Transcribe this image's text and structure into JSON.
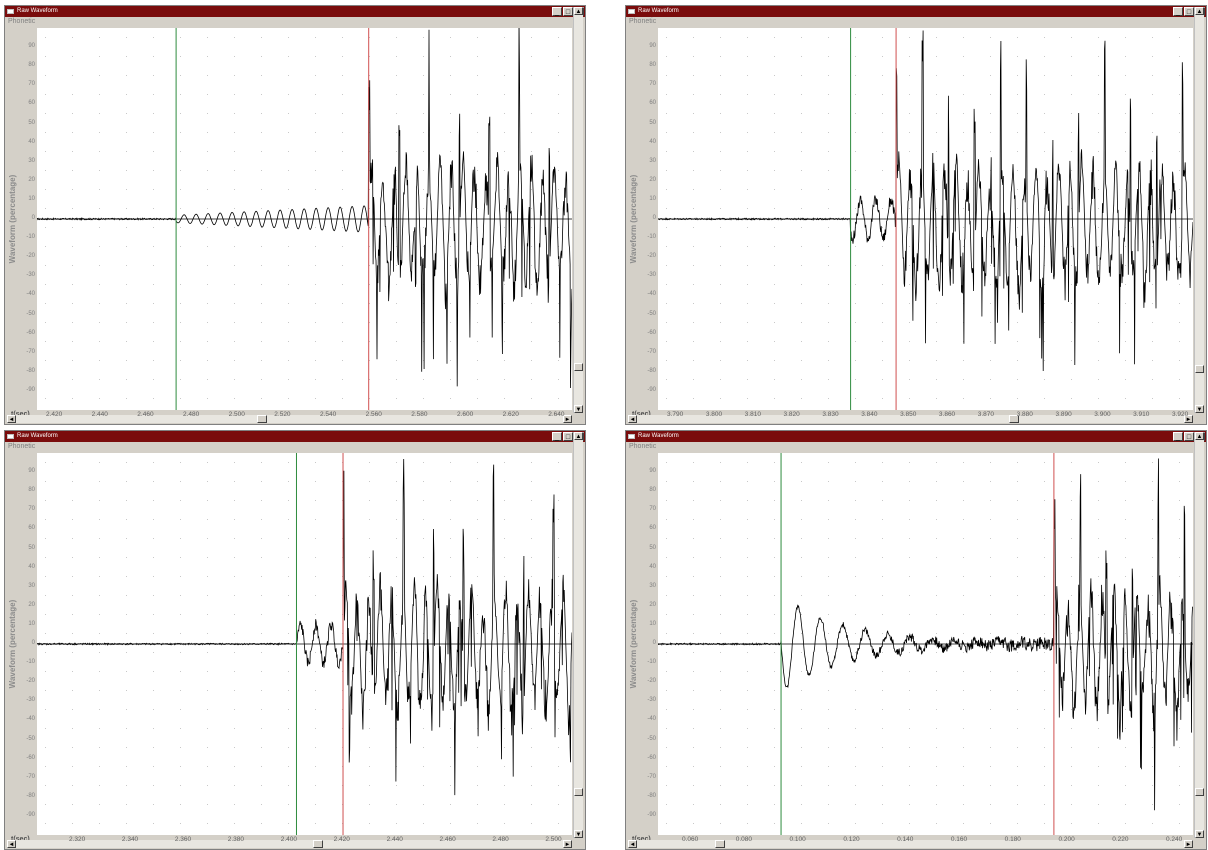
{
  "windows": [
    {
      "title": "Raw Waveform",
      "menu": "Phonetic",
      "ylabel": "Waveform (percentage)",
      "xunit": "t(sec)",
      "xticks": [
        "2.420",
        "2.440",
        "2.460",
        "2.480",
        "2.500",
        "2.520",
        "2.540",
        "2.560",
        "2.580",
        "2.600",
        "2.620",
        "2.640"
      ],
      "green_marker_frac": 0.26,
      "red_marker_frac": 0.62
    },
    {
      "title": "Raw Waveform",
      "menu": "Phonetic",
      "ylabel": "Waveform (percentage)",
      "xunit": "t(sec)",
      "xticks": [
        "3.790",
        "3.800",
        "3.810",
        "3.820",
        "3.830",
        "3.840",
        "3.850",
        "3.860",
        "3.870",
        "3.880",
        "3.890",
        "3.900",
        "3.910",
        "3.920"
      ],
      "green_marker_frac": 0.36,
      "red_marker_frac": 0.445
    },
    {
      "title": "Raw Waveform",
      "menu": "Phonetic",
      "ylabel": "Waveform (percentage)",
      "xunit": "t(sec)",
      "xticks": [
        "2.320",
        "2.340",
        "2.360",
        "2.380",
        "2.400",
        "2.420",
        "2.440",
        "2.460",
        "2.480",
        "2.500"
      ],
      "green_marker_frac": 0.485,
      "red_marker_frac": 0.572
    },
    {
      "title": "Raw Waveform",
      "menu": "Phonetic",
      "ylabel": "Waveform (percentage)",
      "xunit": "t(sec)",
      "xticks": [
        "0.060",
        "0.080",
        "0.100",
        "0.120",
        "0.140",
        "0.160",
        "0.180",
        "0.200",
        "0.220",
        "0.240"
      ],
      "green_marker_frac": 0.23,
      "red_marker_frac": 0.74
    }
  ],
  "yticks": [
    "90",
    "80",
    "70",
    "60",
    "50",
    "40",
    "30",
    "20",
    "10",
    "0",
    "-10",
    "-20",
    "-30",
    "-40",
    "-50",
    "-60",
    "-70",
    "-80",
    "-90"
  ],
  "buttons": {
    "minimize": "_",
    "maximize": "□",
    "close": "×"
  },
  "scroll": {
    "up": "▲",
    "down": "▼",
    "left": "◄",
    "right": "►"
  },
  "colors": {
    "green_marker": "#2e8b3e",
    "red_marker": "#d05050",
    "waveform": "#000000",
    "title_bar": "#7a0c0c"
  }
}
